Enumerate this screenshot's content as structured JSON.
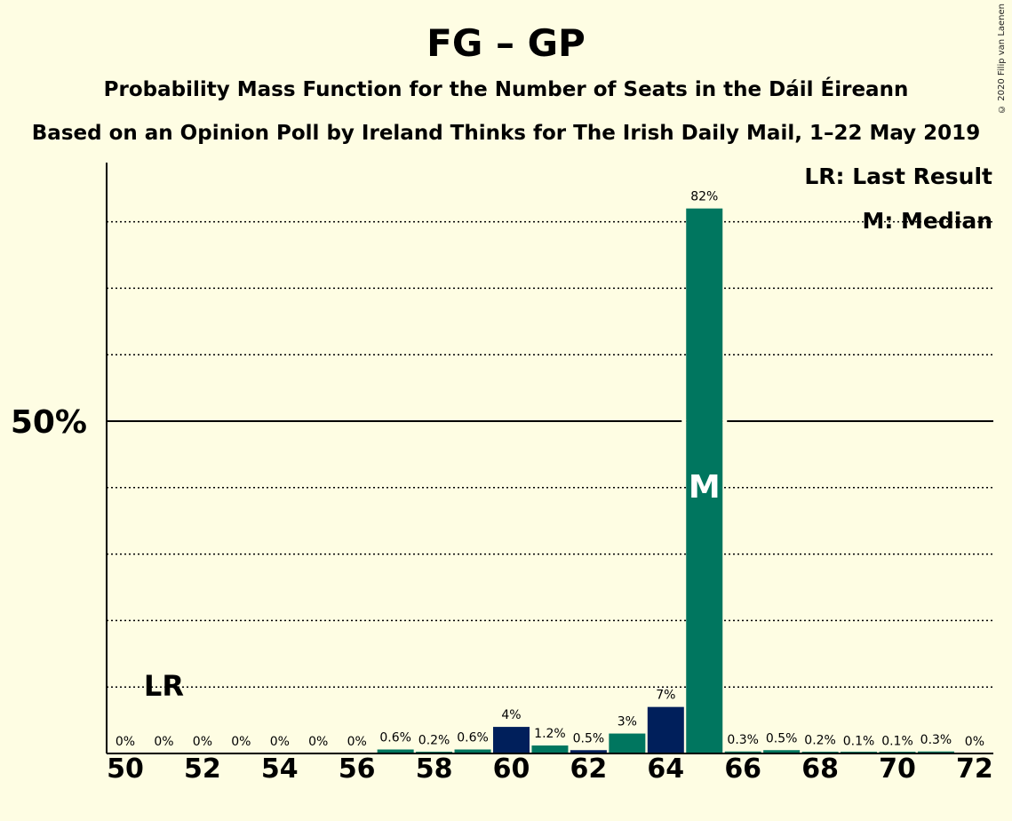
{
  "title": "FG – GP",
  "subtitle": "Probability Mass Function for the Number of Seats in the Dáil Éireann",
  "subtitle2": "Based on an Opinion Poll by Ireland Thinks for The Irish Daily Mail, 1–22 May 2019",
  "copyright": "© 2020 Filip van Laenen",
  "legend": {
    "lr": "LR: Last Result",
    "m": "M: Median"
  },
  "colors": {
    "background": "#fefde3",
    "green": "#00765f",
    "navy": "#001f5b",
    "axis": "#000000"
  },
  "chart_data": {
    "type": "bar",
    "x": [
      50,
      51,
      52,
      53,
      54,
      55,
      56,
      57,
      58,
      59,
      60,
      61,
      62,
      63,
      64,
      65,
      66,
      67,
      68,
      69,
      70,
      71,
      72
    ],
    "values": [
      0,
      0,
      0,
      0,
      0,
      0,
      0,
      0.6,
      0.2,
      0.6,
      4,
      1.2,
      0.5,
      3,
      7,
      82,
      0.3,
      0.5,
      0.2,
      0.1,
      0.1,
      0.3,
      0
    ],
    "labels": [
      "0%",
      "0%",
      "0%",
      "0%",
      "0%",
      "0%",
      "0%",
      "0.6%",
      "0.2%",
      "0.6%",
      "4%",
      "1.2%",
      "0.5%",
      "3%",
      "7%",
      "82%",
      "0.3%",
      "0.5%",
      "0.2%",
      "0.1%",
      "0.1%",
      "0.3%",
      "0%"
    ],
    "bar_colors": [
      "green",
      "green",
      "green",
      "green",
      "green",
      "green",
      "green",
      "green",
      "green",
      "green",
      "navy",
      "green",
      "navy",
      "green",
      "navy",
      "green",
      "green",
      "green",
      "green",
      "green",
      "green",
      "green",
      "green"
    ],
    "xticks": [
      50,
      52,
      54,
      56,
      58,
      60,
      62,
      64,
      66,
      68,
      70,
      72
    ],
    "ytick_label": "50%",
    "ytick_value": 50,
    "ylim": [
      0,
      89
    ],
    "dotted_gridlines": [
      10,
      20,
      30,
      40,
      60,
      70,
      80
    ],
    "last_result_seat": 51,
    "last_result_label": "LR",
    "median_seat": 65,
    "median_label": "M",
    "grid": true,
    "legend_position": "top-right"
  }
}
